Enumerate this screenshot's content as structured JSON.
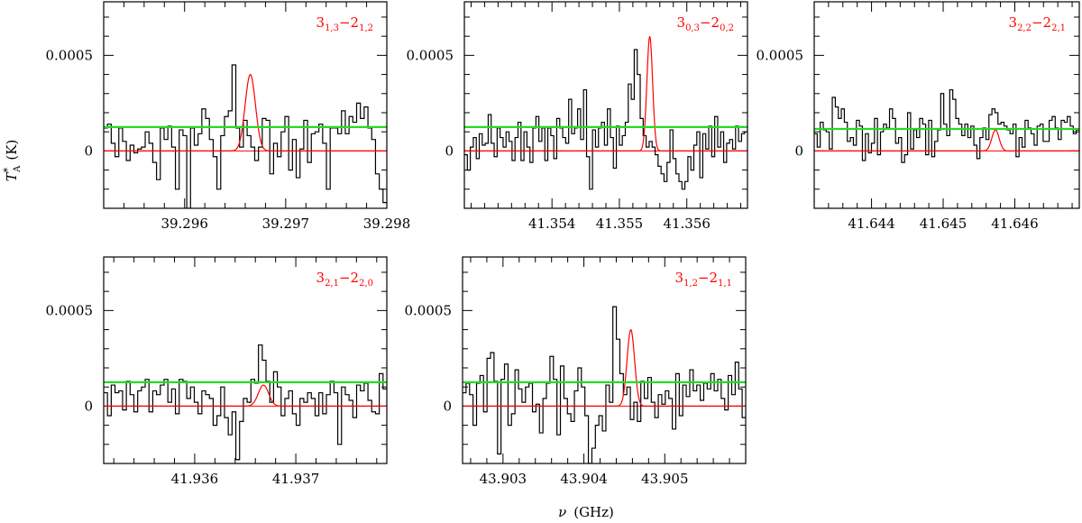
{
  "figure": {
    "xlabel_symbol": "ν",
    "xlabel_unit": "(GHz)",
    "ylabel_main": "T",
    "ylabel_sup": "*",
    "ylabel_sub": "A",
    "ylabel_unit": "(K)"
  },
  "chart_data": [
    {
      "type": "line",
      "panel": "3(1,3)-2(1,2)",
      "label": {
        "up": "3",
        "up_sub": "1,3",
        "dash": "−",
        "low": "2",
        "low_sub": "1,2"
      },
      "xlim": [
        39.2952,
        39.298
      ],
      "ylim": [
        -0.0003,
        0.00078
      ],
      "xticks": [
        {
          "v": 39.296,
          "t": "39.296"
        },
        {
          "v": 39.297,
          "t": "39.297"
        },
        {
          "v": 39.298,
          "t": "39.298"
        }
      ],
      "yticks": [
        {
          "v": 0.0005,
          "t": "0.0005"
        },
        {
          "v": 0,
          "t": "0"
        }
      ],
      "noise_level": 0.000125,
      "gauss": {
        "center": 39.29665,
        "amp": 0.0004,
        "fwhm": 0.00012
      },
      "histogram": [
        0.00012,
        0.00014,
        4e-05,
        -3e-05,
        0.00012,
        5e-05,
        -5e-05,
        3e-05,
        -1e-05,
        1e-05,
        2e-05,
        0.0001,
        4e-05,
        -6e-05,
        -0.00015,
        0.00012,
        6e-05,
        0.00013,
        2e-05,
        -0.0002,
        0.00011,
        8e-05,
        -0.0003,
        0.00012,
        3e-05,
        9e-05,
        0.00022,
        0.00017,
        6e-05,
        -3e-05,
        -0.0002,
        8e-05,
        0.00018,
        0.00021,
        0.00045,
        0.00012,
        2e-05,
        0.00016,
        8e-05,
        2e-05,
        -5e-05,
        2e-05,
        0.00017,
        0.00016,
        -0.00012,
        4e-05,
        -3e-05,
        0.0001,
        0.00018,
        -0.0001,
        6e-05,
        -0.00014,
        1e-05,
        0.00016,
        -6e-05,
        9e-05,
        0.0001,
        0.00014,
        4e-05,
        -0.0002,
        0.00012,
        0.00012,
        9e-05,
        0.00021,
        9e-05,
        0.00018,
        0.00015,
        0.00025,
        0.00017,
        0.00023,
        0.00012,
        6e-05,
        -0.00012,
        -0.0002,
        -0.00027
      ],
      "draw_sign_ticks": false
    },
    {
      "type": "line",
      "panel": "3(0,3)-2(0,2)",
      "label": {
        "up": "3",
        "up_sub": "0,3",
        "dash": "−",
        "low": "2",
        "low_sub": "0,2"
      },
      "xlim": [
        41.3527,
        41.3569
      ],
      "ylim": [
        -0.0003,
        0.00078
      ],
      "xticks": [
        {
          "v": 41.354,
          "t": "41.354"
        },
        {
          "v": 41.355,
          "t": "41.355"
        },
        {
          "v": 41.356,
          "t": "41.356"
        }
      ],
      "yticks": [
        {
          "v": 0.0005,
          "t": "0.0005"
        },
        {
          "v": 0,
          "t": "0"
        }
      ],
      "noise_level": 0.000125,
      "gauss": {
        "center": 41.35545,
        "amp": 0.0006,
        "fwhm": 0.0001
      },
      "histogram": [
        -2e-05,
        -0.0001,
        2e-05,
        7e-05,
        -4e-05,
        9e-05,
        3e-05,
        4e-05,
        0.00019,
        4e-05,
        -3e-05,
        0.00012,
        7e-05,
        2e-05,
        0.0001,
        5e-05,
        -5e-05,
        7e-05,
        0.00015,
        -5e-05,
        0.0001,
        2e-05,
        -6e-05,
        0.00012,
        0.00018,
        5e-05,
        0.00012,
        -5e-05,
        0.00012,
        8e-05,
        -4e-05,
        0.00017,
        0.00012,
        7e-05,
        4e-05,
        0.00027,
        9e-05,
        0.00012,
        0.00022,
        6e-05,
        0.00032,
        -3e-05,
        -0.0002,
        0.00011,
        2e-05,
        0.00012,
        0.00015,
        3e-05,
        0.00022,
        7e-05,
        -9e-05,
        0.00013,
        3e-05,
        8e-05,
        0.00015,
        0.00035,
        0.00027,
        0.00053,
        0.0004,
        0.00017,
        8e-05,
        2e-05,
        5e-05,
        2e-05,
        -2e-05,
        -8e-05,
        -0.00012,
        -0.00016,
        -6e-05,
        0.00011,
        -4e-05,
        -0.00012,
        -0.00016,
        -0.0002,
        -0.00016,
        -3e-05,
        -0.0001,
        3e-05,
        0.0001,
        -0.00014,
        9e-05,
        1e-05,
        0.00013,
        -3e-05,
        0.00018,
        2e-05,
        0.0001,
        -6e-05,
        4e-05,
        6e-05,
        1e-05,
        0.00013,
        5e-05,
        9e-05,
        0.0001
      ],
      "draw_sign_ticks": true
    },
    {
      "type": "line",
      "panel": "3(2,2)-2(2,1)",
      "label": {
        "up": "3",
        "up_sub": "2,2",
        "dash": "−",
        "low": "2",
        "low_sub": "2,1"
      },
      "xlim": [
        41.6432,
        41.6469
      ],
      "ylim": [
        -0.0003,
        0.00078
      ],
      "xticks": [
        {
          "v": 41.644,
          "t": "41.644"
        },
        {
          "v": 41.645,
          "t": "41.645"
        },
        {
          "v": 41.646,
          "t": "41.646"
        }
      ],
      "yticks": [
        {
          "v": 0.0005,
          "t": "0.0005"
        },
        {
          "v": 0,
          "t": "0"
        }
      ],
      "noise_level": 0.000115,
      "gauss": {
        "center": 41.64573,
        "amp": 0.00011,
        "fwhm": 0.00012
      },
      "histogram": [
        9e-05,
        2e-05,
        0.00015,
        0.00011,
        0.0001,
        1e-05,
        0.00028,
        0.00023,
        0.00017,
        0.00022,
        0.00015,
        5e-05,
        7e-05,
        3e-05,
        0.00016,
        0.00013,
        -5e-05,
        9e-05,
        -1e-05,
        4e-05,
        0.00017,
        -2e-05,
        0.0001,
        0.00014,
        0.00012,
        0.00022,
        0.00017,
        4e-05,
        7e-05,
        -6e-05,
        -2e-05,
        0.0002,
        1e-05,
        0.00011,
        7e-05,
        0.00017,
        0.00014,
        -2e-05,
        0.00016,
        -3e-05,
        5e-05,
        0.00011,
        0.0003,
        0.00014,
        8e-05,
        0.00032,
        0.00027,
        0.00017,
        0.00014,
        8e-05,
        0.00014,
        7e-05,
        0.00013,
        3e-05,
        -4e-05,
        7e-05,
        0.00012,
        6e-05,
        0.00019,
        0.00022,
        0.0002,
        0.00014,
        0.00015,
        0.00013,
        0.00011,
        9e-05,
        0.00014,
        -3e-05,
        7e-05,
        2e-05,
        0.00016,
        0.00012,
        9e-05,
        3e-05,
        0.00013,
        0.00014,
        5e-05,
        5e-05,
        0.00016,
        0.00018,
        0.00012,
        6e-05,
        0.00016,
        0.00015,
        0.00018,
        0.00013,
        9e-05,
        0.00011
      ],
      "draw_sign_ticks": false
    },
    {
      "type": "line",
      "panel": "3(2,1)-2(2,0)",
      "label": {
        "up": "3",
        "up_sub": "2,1",
        "dash": "−",
        "low": "2",
        "low_sub": "2,0"
      },
      "xlim": [
        41.9351,
        41.9379
      ],
      "ylim": [
        -0.0003,
        0.00078
      ],
      "xticks": [
        {
          "v": 41.936,
          "t": "41.936"
        },
        {
          "v": 41.937,
          "t": "41.937"
        }
      ],
      "yticks": [
        {
          "v": 0.0005,
          "t": "0.0005"
        },
        {
          "v": 0,
          "t": "0"
        }
      ],
      "noise_level": 0.000125,
      "gauss": {
        "center": 41.93668,
        "amp": 0.00011,
        "fwhm": 0.00012
      },
      "histogram": [
        7e-05,
        -5e-05,
        0.00011,
        7e-05,
        8e-05,
        -2e-05,
        0.00013,
        6e-05,
        -3e-05,
        8e-05,
        0.0001,
        0.00014,
        -3e-05,
        8e-05,
        6e-05,
        0.00011,
        0.00014,
        2e-05,
        9e-05,
        -4e-05,
        0.00014,
        0.00013,
        4e-05,
        0.0001,
        2e-05,
        -4e-05,
        8e-05,
        6e-05,
        4e-05,
        -0.0001,
        -5e-05,
        0.0001,
        -6e-05,
        -0.00015,
        -3e-05,
        -0.00028,
        -8e-05,
        4e-05,
        2e-05,
        0.00014,
        0.00012,
        0.00032,
        0.00024,
        0.00013,
        2e-05,
        0.00018,
        0.0001,
        -5e-05,
        4e-05,
        8e-05,
        -4e-05,
        -0.0001,
        4e-05,
        2e-05,
        7e-05,
        4e-05,
        -5e-05,
        7e-05,
        -4e-05,
        6e-05,
        0.00013,
        7e-05,
        -0.0002,
        0.0001,
        6e-05,
        3e-05,
        -6e-05,
        0.00011,
        8e-05,
        0.00012,
        3e-05,
        -3e-05,
        -4e-05,
        0.00017,
        9e-05
      ],
      "draw_sign_ticks": false
    },
    {
      "type": "line",
      "panel": "3(1,2)-2(1,1)",
      "label": {
        "up": "3",
        "up_sub": "1,2",
        "dash": "−",
        "low": "2",
        "low_sub": "1,1"
      },
      "xlim": [
        43.9025,
        43.906
      ],
      "ylim": [
        -0.0003,
        0.00078
      ],
      "xticks": [
        {
          "v": 43.903,
          "t": "43.903"
        },
        {
          "v": 43.904,
          "t": "43.904"
        },
        {
          "v": 43.905,
          "t": "43.905"
        }
      ],
      "yticks": [
        {
          "v": 0.0005,
          "t": "0.0005"
        },
        {
          "v": 0,
          "t": "0"
        }
      ],
      "noise_level": 0.000125,
      "gauss": {
        "center": 43.90458,
        "amp": 0.0004,
        "fwhm": 0.00011
      },
      "histogram": [
        7e-05,
        0.00012,
        6e-05,
        -0.0001,
        0.00012,
        0.00016,
        -3e-05,
        0.00025,
        0.00028,
        0.00013,
        -0.00025,
        0.00014,
        0.00022,
        -0.0001,
        -4e-05,
        0.00019,
        9e-05,
        2e-05,
        0.0001,
        0.00012,
        -3e-05,
        1e-05,
        -0.00014,
        4e-05,
        0.00012,
        0.00026,
        0.00014,
        -0.00015,
        0.00021,
        4e-05,
        -4e-05,
        -8e-05,
        8e-05,
        0.0002,
        0.0001,
        -5e-05,
        -0.0003,
        -0.00022,
        -0.0001,
        -5e-05,
        -0.00013,
        0.00011,
        2e-05,
        0.00052,
        0.00035,
        0.00017,
        6e-05,
        0.0001,
        -7e-05,
        2e-05,
        -8e-05,
        0.00013,
        4e-05,
        0.00015,
        2e-05,
        -6e-05,
        6e-05,
        1e-05,
        8e-05,
        4e-05,
        -0.00012,
        0.00017,
        -5e-05,
        0.00011,
        5e-05,
        0.00019,
        8e-05,
        0.00011,
        3e-05,
        0.00012,
        9e-05,
        0.00017,
        8e-05,
        0.00014,
        4e-05,
        -2e-05,
        0.00016,
        6e-05,
        0.00023,
        9e-05,
        -6e-05
      ],
      "draw_sign_ticks": false
    }
  ]
}
